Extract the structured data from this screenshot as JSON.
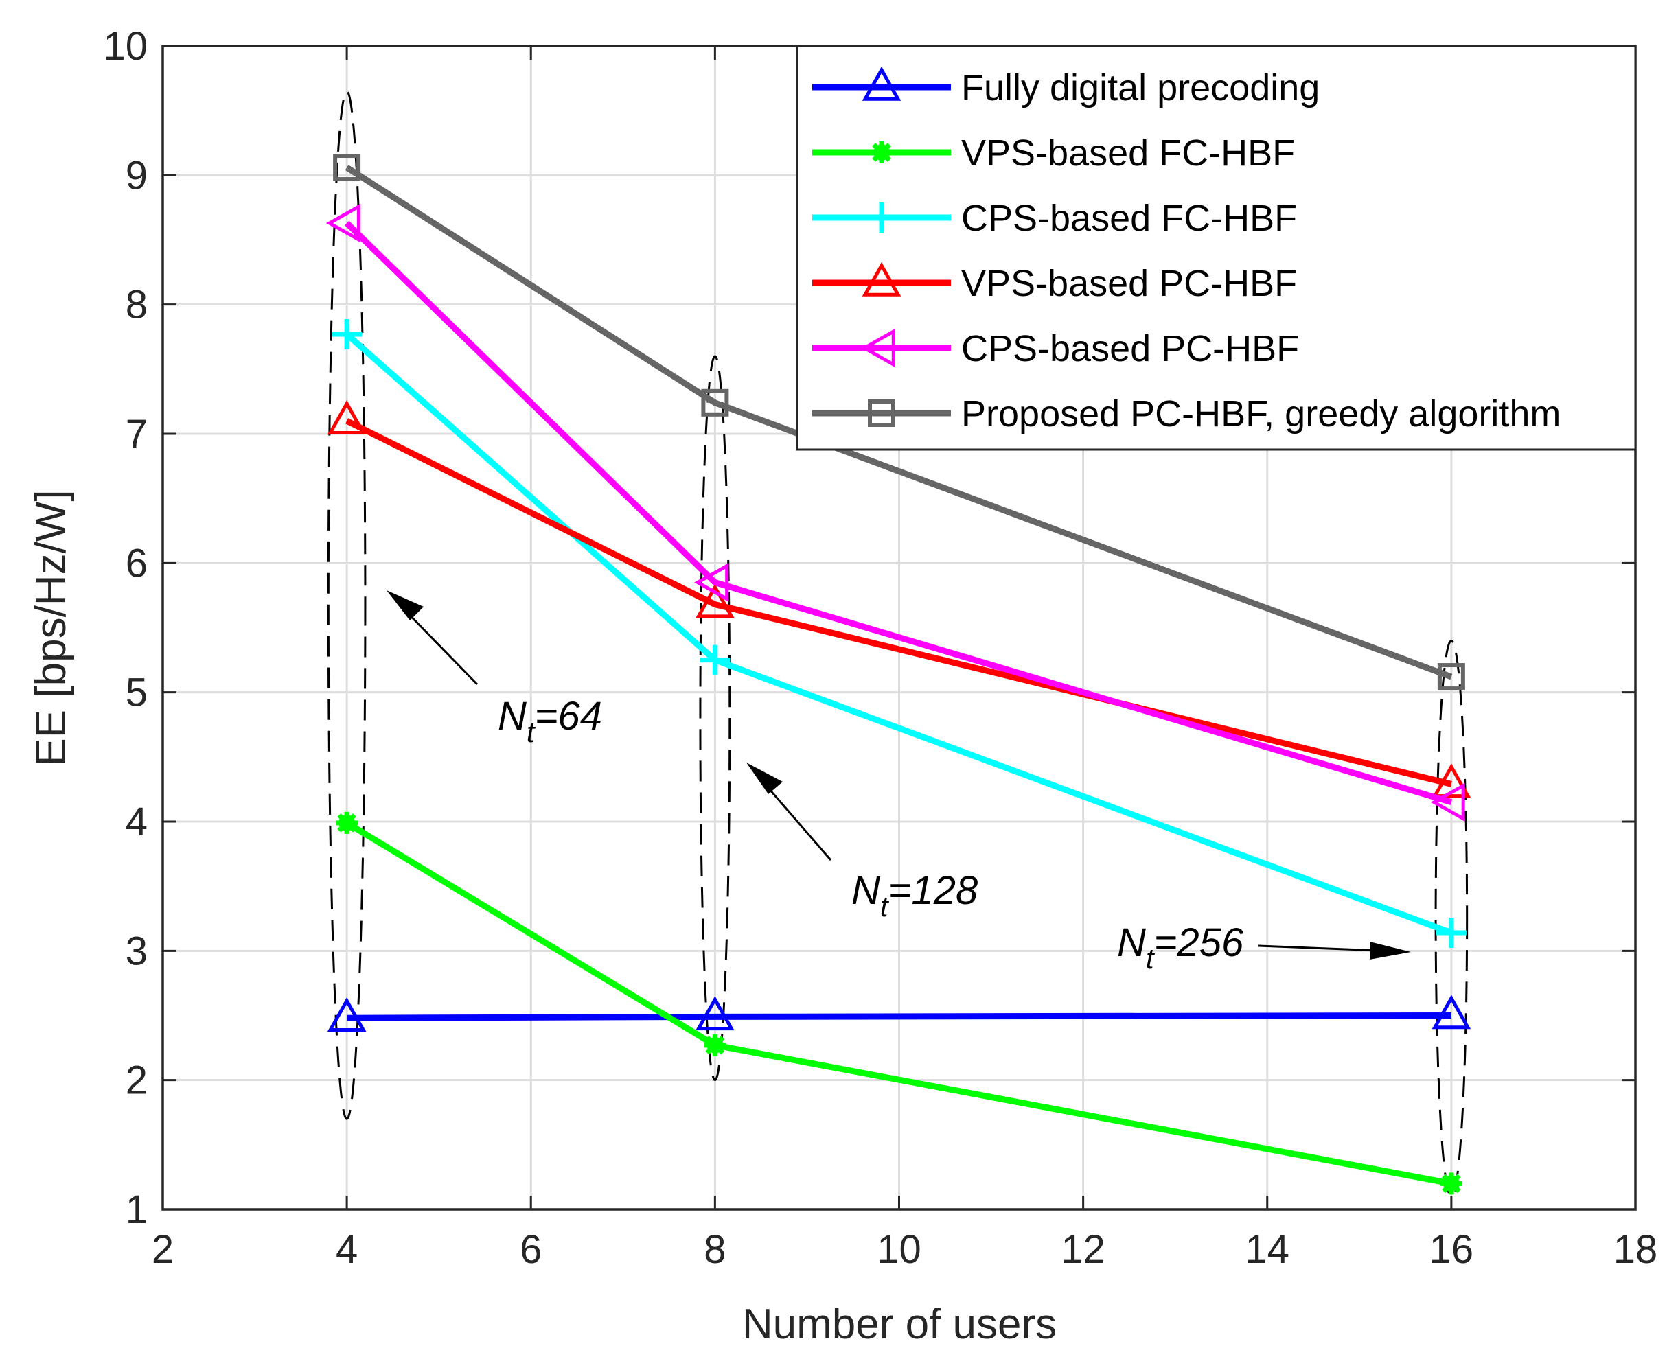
{
  "chart_data": {
    "type": "line",
    "title": "",
    "xlabel": "Number of users",
    "ylabel": "EE [bps/Hz/W]",
    "xlim": [
      2,
      18
    ],
    "ylim": [
      1,
      10
    ],
    "xticks": [
      "2",
      "4",
      "6",
      "8",
      "10",
      "12",
      "14",
      "16",
      "18"
    ],
    "yticks": [
      "1",
      "2",
      "3",
      "4",
      "5",
      "6",
      "7",
      "8",
      "9",
      "10"
    ],
    "grid": true,
    "legend_position": "top-right",
    "x": [
      4,
      8,
      16
    ],
    "series": [
      {
        "name": "Fully digital precoding",
        "color": "#0000ff",
        "marker": "triangle-up",
        "values": [
          2.48,
          2.49,
          2.5
        ]
      },
      {
        "name": "VPS-based FC-HBF",
        "color": "#00ff00",
        "marker": "asterisk",
        "values": [
          3.99,
          2.27,
          1.2
        ]
      },
      {
        "name": "CPS-based FC-HBF",
        "color": "#00ffff",
        "marker": "plus",
        "values": [
          7.77,
          5.25,
          3.14
        ]
      },
      {
        "name": "VPS-based PC-HBF",
        "color": "#ff0000",
        "marker": "triangle-up",
        "values": [
          7.1,
          5.68,
          4.29
        ]
      },
      {
        "name": "CPS-based PC-HBF",
        "color": "#ff00ff",
        "marker": "triangle-left",
        "values": [
          8.63,
          5.85,
          4.15
        ]
      },
      {
        "name": "Proposed PC-HBF, greedy algorithm",
        "color": "#666666",
        "marker": "square",
        "values": [
          9.06,
          7.24,
          5.12
        ]
      }
    ],
    "annotations": [
      {
        "main": "N",
        "sub": "t",
        "value": "=64",
        "label": "Nt=64"
      },
      {
        "main": "N",
        "sub": "t",
        "value": "=128",
        "label": "Nt=128"
      },
      {
        "main": "N",
        "sub": "t",
        "value": "=256",
        "label": "Nt=256"
      }
    ]
  }
}
